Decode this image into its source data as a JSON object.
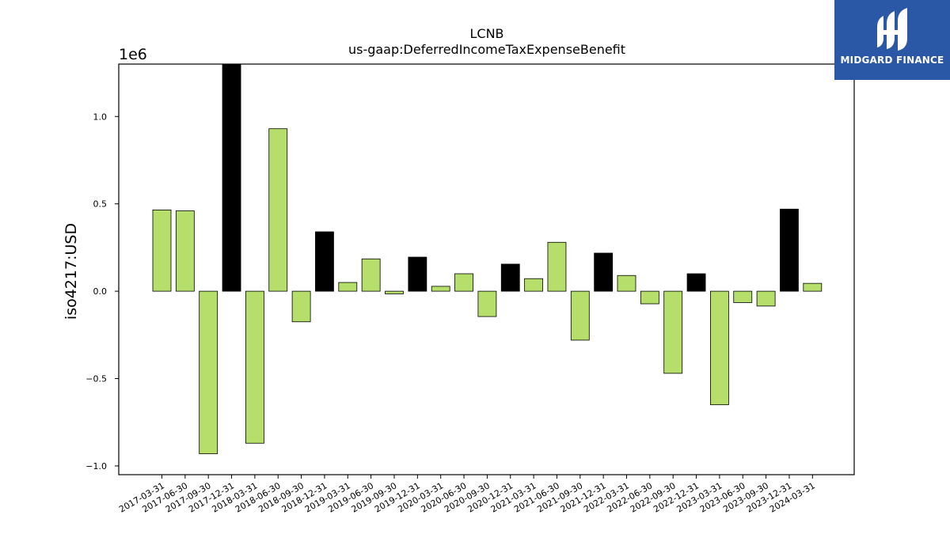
{
  "chart_data": {
    "type": "bar",
    "title": "LCNB",
    "subtitle": "us-gaap:DeferredIncomeTaxExpenseBenefit",
    "ylabel": "iso4217:USD",
    "xlabel": "",
    "y_scale_label": "1e6",
    "ylim": [
      -1.05,
      1.3
    ],
    "yticks": [
      -1.0,
      -0.5,
      0.0,
      0.5,
      1.0
    ],
    "ytick_labels": [
      "−1.0",
      "−0.5",
      "0.0",
      "0.5",
      "1.0"
    ],
    "grid": false,
    "categories": [
      "2017-03-31",
      "2017-06-30",
      "2017-09-30",
      "2017-12-31",
      "2018-03-31",
      "2018-06-30",
      "2018-09-30",
      "2018-12-31",
      "2019-03-31",
      "2019-06-30",
      "2019-09-30",
      "2019-12-31",
      "2020-03-31",
      "2020-06-30",
      "2020-09-30",
      "2020-12-31",
      "2021-03-31",
      "2021-06-30",
      "2021-09-30",
      "2021-12-31",
      "2022-03-31",
      "2022-06-30",
      "2022-09-30",
      "2022-12-31",
      "2023-03-31",
      "2023-06-30",
      "2023-09-30",
      "2023-12-31",
      "2024-03-31"
    ],
    "values": [
      0.465,
      0.46,
      -0.93,
      1.3,
      -0.87,
      0.93,
      -0.175,
      0.34,
      0.05,
      0.185,
      -0.015,
      0.195,
      0.028,
      0.1,
      -0.145,
      0.155,
      0.072,
      0.28,
      -0.28,
      0.218,
      0.09,
      -0.072,
      -0.47,
      0.1,
      -0.65,
      -0.065,
      -0.085,
      0.47,
      0.045
    ],
    "bar_kind": [
      "quarter",
      "quarter",
      "quarter",
      "year-end",
      "quarter",
      "quarter",
      "quarter",
      "year-end",
      "quarter",
      "quarter",
      "quarter",
      "year-end",
      "quarter",
      "quarter",
      "quarter",
      "year-end",
      "quarter",
      "quarter",
      "quarter",
      "year-end",
      "quarter",
      "quarter",
      "quarter",
      "year-end",
      "quarter",
      "quarter",
      "quarter",
      "year-end",
      "quarter"
    ],
    "colors": {
      "quarter": "#b5de6b",
      "year-end": "#000000",
      "edge": "#000000"
    }
  },
  "logo": {
    "text": "MIDGARD FINANCE",
    "background": "#2b57a7",
    "icon": "midgard-logo-icon"
  }
}
